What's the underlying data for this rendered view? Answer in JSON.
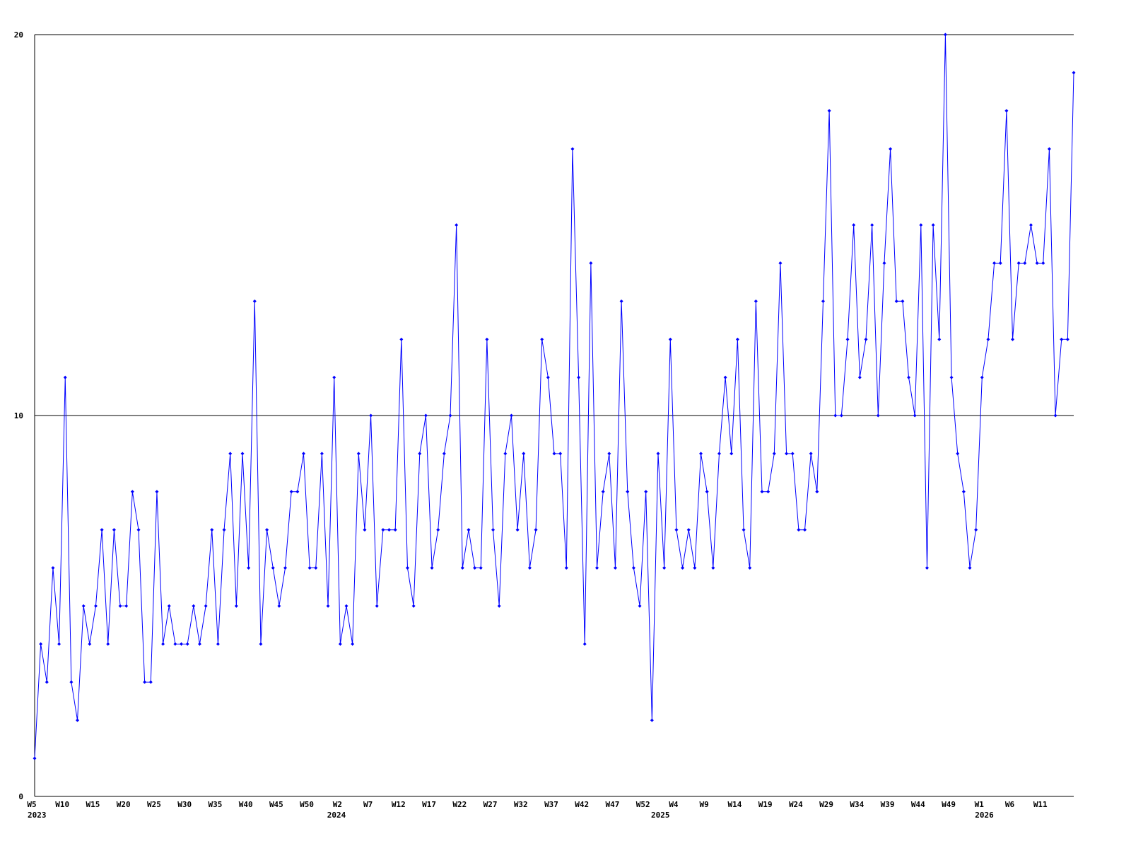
{
  "chart_data": {
    "type": "line",
    "categories": [
      "W5",
      null,
      null,
      null,
      null,
      "W10",
      null,
      null,
      null,
      null,
      "W15",
      null,
      null,
      null,
      null,
      "W20",
      null,
      null,
      null,
      null,
      "W25",
      null,
      null,
      null,
      null,
      "W30",
      null,
      null,
      null,
      null,
      "W35",
      null,
      null,
      null,
      null,
      "W40",
      null,
      null,
      null,
      null,
      "W45",
      null,
      null,
      null,
      null,
      "W50",
      null,
      null,
      null,
      null,
      "W2",
      null,
      null,
      null,
      null,
      "W7",
      null,
      null,
      null,
      null,
      "W12",
      null,
      null,
      null,
      null,
      "W17",
      null,
      null,
      null,
      null,
      "W22",
      null,
      null,
      null,
      null,
      "W27",
      null,
      null,
      null,
      null,
      "W32",
      null,
      null,
      null,
      null,
      "W37",
      null,
      null,
      null,
      null,
      "W42",
      null,
      null,
      null,
      null,
      "W47",
      null,
      null,
      null,
      null,
      "W52",
      null,
      null,
      null,
      null,
      "W4",
      null,
      null,
      null,
      null,
      "W9",
      null,
      null,
      null,
      null,
      "W14",
      null,
      null,
      null,
      null,
      "W19",
      null,
      null,
      null,
      null,
      "W24",
      null,
      null,
      null,
      null,
      "W29",
      null,
      null,
      null,
      null,
      "W34",
      null,
      null,
      null,
      null,
      "W39",
      null,
      null,
      null,
      null,
      "W44",
      null,
      null,
      null,
      null,
      "W49",
      null,
      null,
      null,
      null,
      "W1",
      null,
      null,
      null,
      null,
      "W6",
      null,
      null,
      null,
      null,
      "W11",
      null,
      null,
      null,
      null,
      null
    ],
    "year_ticks": [
      {
        "value": 0,
        "label": "2023"
      },
      {
        "value": 49,
        "label": "2024"
      },
      {
        "value": 102,
        "label": "2025"
      },
      {
        "value": 155,
        "label": "2026"
      }
    ],
    "values": [
      1,
      4,
      3,
      6,
      4,
      11,
      3,
      2,
      5,
      4,
      5,
      7,
      4,
      7,
      5,
      5,
      8,
      7,
      3,
      3,
      8,
      4,
      5,
      4,
      4,
      4,
      5,
      4,
      5,
      7,
      4,
      7,
      9,
      5,
      9,
      6,
      13,
      4,
      7,
      6,
      5,
      6,
      8,
      8,
      9,
      6,
      6,
      9,
      5,
      11,
      4,
      5,
      4,
      9,
      7,
      10,
      5,
      7,
      7,
      7,
      12,
      6,
      5,
      9,
      10,
      6,
      7,
      9,
      10,
      15,
      6,
      7,
      6,
      6,
      12,
      7,
      5,
      9,
      10,
      7,
      9,
      6,
      7,
      12,
      11,
      9,
      9,
      6,
      17,
      11,
      4,
      14,
      6,
      8,
      9,
      6,
      13,
      8,
      6,
      5,
      8,
      2,
      9,
      6,
      12,
      7,
      6,
      7,
      6,
      9,
      8,
      6,
      9,
      11,
      9,
      12,
      7,
      6,
      13,
      8,
      8,
      9,
      14,
      9,
      9,
      7,
      7,
      9,
      8,
      13,
      18,
      10,
      10,
      12,
      15,
      11,
      12,
      15,
      10,
      14,
      17,
      13,
      13,
      11,
      10,
      15,
      6,
      15,
      12,
      20,
      11,
      9,
      8,
      6,
      7,
      11,
      12,
      14,
      14,
      18,
      12,
      14,
      14,
      15,
      14,
      14,
      17,
      10,
      12,
      12,
      19
    ],
    "color": "#0000ff",
    "ylim": [
      0,
      20
    ],
    "yticks": [
      0,
      10,
      20
    ],
    "grid": true
  }
}
